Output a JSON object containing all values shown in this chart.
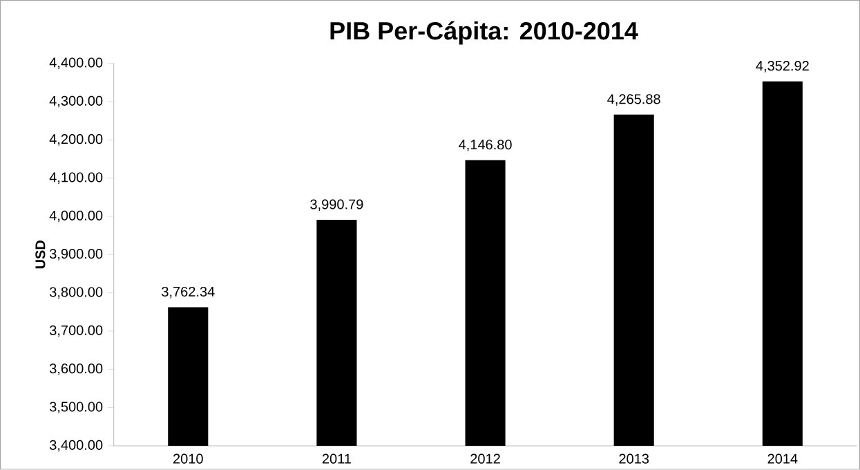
{
  "chart_data": {
    "type": "bar",
    "title": "PIB Per-Cápita: 2010-2014",
    "ylabel": "USD",
    "categories": [
      "2010",
      "2011",
      "2012",
      "2013",
      "2014"
    ],
    "values": [
      3762.34,
      3990.79,
      4146.8,
      4265.88,
      4352.92
    ],
    "value_labels": [
      "3,762.34",
      "3,990.79",
      "4,146.80",
      "4,265.88",
      "4,352.92"
    ],
    "color": "#000000",
    "ylim": [
      3400,
      4400
    ],
    "yticks": [
      {
        "value": 3400,
        "label": "3,400.00"
      },
      {
        "value": 3500,
        "label": "3,500.00"
      },
      {
        "value": 3600,
        "label": "3,600.00"
      },
      {
        "value": 3700,
        "label": "3,700.00"
      },
      {
        "value": 3800,
        "label": "3,800.00"
      },
      {
        "value": 3900,
        "label": "3,900.00"
      },
      {
        "value": 4000,
        "label": "4,000.00"
      },
      {
        "value": 4100,
        "label": "4,100.00"
      },
      {
        "value": 4200,
        "label": "4,200.00"
      },
      {
        "value": 4300,
        "label": "4,300.00"
      },
      {
        "value": 4400,
        "label": "4,400.00"
      }
    ],
    "grid": false
  }
}
